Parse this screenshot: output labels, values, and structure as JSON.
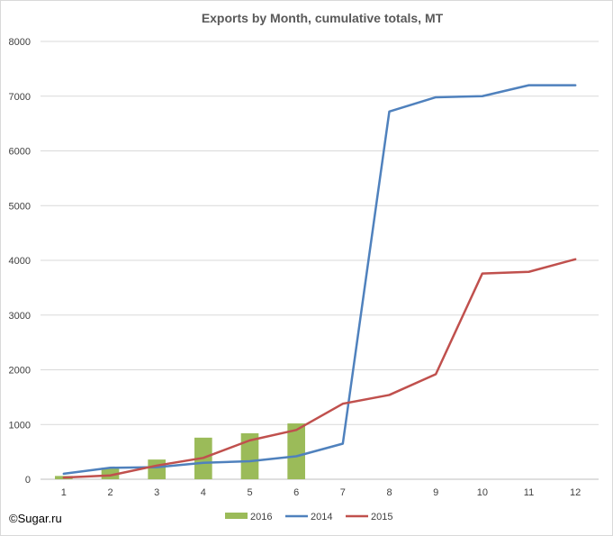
{
  "credit": "©Sugar.ru",
  "chart_data": {
    "type": "bar+line",
    "title": "Exports by Month, cumulative totals, MT",
    "xlabel": "",
    "ylabel": "",
    "categories": [
      "1",
      "2",
      "3",
      "4",
      "5",
      "6",
      "7",
      "8",
      "9",
      "10",
      "11",
      "12"
    ],
    "ylim": [
      0,
      8000
    ],
    "yticks": [
      0,
      1000,
      2000,
      3000,
      4000,
      5000,
      6000,
      7000,
      8000
    ],
    "grid": true,
    "legend": "bottom",
    "series": [
      {
        "name": "2016",
        "kind": "bar",
        "color": "#9bbb59",
        "values": [
          60,
          210,
          360,
          760,
          840,
          1020,
          null,
          null,
          null,
          null,
          null,
          null
        ]
      },
      {
        "name": "2014",
        "kind": "line",
        "color": "#4f81bd",
        "values": [
          100,
          210,
          220,
          300,
          330,
          420,
          650,
          6720,
          6980,
          7000,
          7200,
          7200
        ]
      },
      {
        "name": "2015",
        "kind": "line",
        "color": "#c0504d",
        "values": [
          30,
          70,
          250,
          390,
          710,
          900,
          1380,
          1540,
          1920,
          3760,
          3790,
          4020
        ]
      }
    ]
  }
}
